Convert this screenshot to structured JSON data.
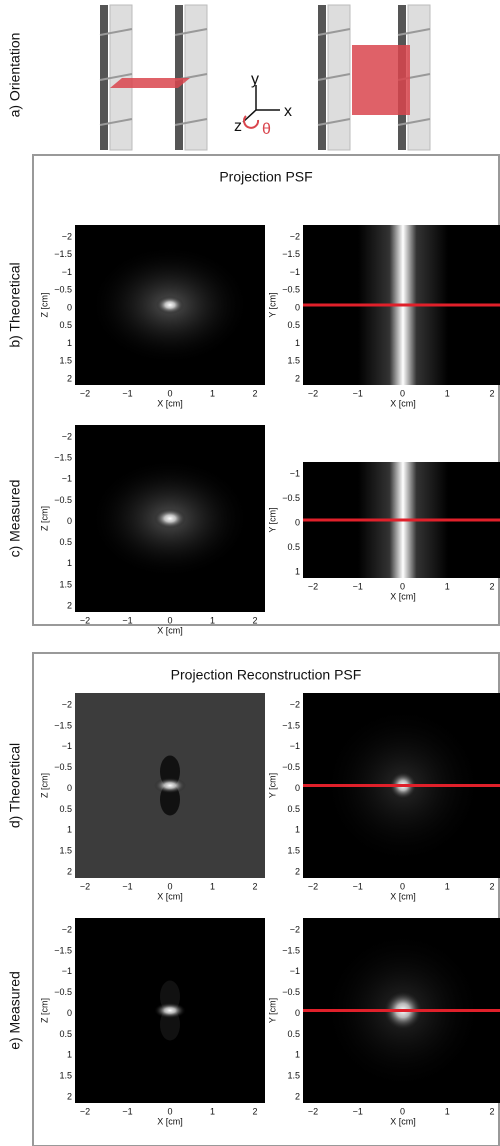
{
  "orientation": {
    "label": "a) Orientation",
    "axis_y": "y",
    "axis_x": "x",
    "axis_z": "z",
    "angle": "θ"
  },
  "sections": [
    {
      "title": "Projection PSF",
      "rows": [
        {
          "label": "b) Theoretical",
          "panels": [
            {
              "xticks": [
                "−2",
                "−1",
                "0",
                "1",
                "2"
              ],
              "yticks": [
                "−2",
                "−1.5",
                "−1",
                "−0.5",
                "0",
                "0.5",
                "1",
                "1.5",
                "2"
              ],
              "xlabel": "X [cm]",
              "ylabel": "Z [cm]"
            },
            {
              "xticks": [
                "−2",
                "−1",
                "0",
                "1",
                "2"
              ],
              "yticks": [
                "−2",
                "−1.5",
                "−1",
                "−0.5",
                "0",
                "0.5",
                "1",
                "1.5",
                "2"
              ],
              "xlabel": "X [cm]",
              "ylabel": "Y [cm]"
            }
          ]
        },
        {
          "label": "c) Measured",
          "panels": [
            {
              "xticks": [
                "−2",
                "−1",
                "0",
                "1",
                "2"
              ],
              "yticks": [
                "−2",
                "−1.5",
                "−1",
                "−0.5",
                "0",
                "0.5",
                "1",
                "1.5",
                "2"
              ],
              "xlabel": "X [cm]",
              "ylabel": "Z [cm]"
            },
            {
              "xticks": [
                "−2",
                "−1",
                "0",
                "1",
                "2"
              ],
              "yticks": [
                "−1",
                "−0.5",
                "0",
                "0.5",
                "1"
              ],
              "xlabel": "X [cm]",
              "ylabel": "Y [cm]"
            }
          ]
        }
      ]
    },
    {
      "title": "Projection Reconstruction PSF",
      "rows": [
        {
          "label": "d) Theoretical",
          "panels": [
            {
              "xticks": [
                "−2",
                "−1",
                "0",
                "1",
                "2"
              ],
              "yticks": [
                "−2",
                "−1.5",
                "−1",
                "−0.5",
                "0",
                "0.5",
                "1",
                "1.5",
                "2"
              ],
              "xlabel": "X [cm]",
              "ylabel": "Z [cm]"
            },
            {
              "xticks": [
                "−2",
                "−1",
                "0",
                "1",
                "2"
              ],
              "yticks": [
                "−2",
                "−1.5",
                "−1",
                "−0.5",
                "0",
                "0.5",
                "1",
                "1.5",
                "2"
              ],
              "xlabel": "X [cm]",
              "ylabel": "Y [cm]"
            }
          ]
        },
        {
          "label": "e) Measured",
          "panels": [
            {
              "xticks": [
                "−2",
                "−1",
                "0",
                "1",
                "2"
              ],
              "yticks": [
                "−2",
                "−1.5",
                "−1",
                "−0.5",
                "0",
                "0.5",
                "1",
                "1.5",
                "2"
              ],
              "xlabel": "X [cm]",
              "ylabel": "Z [cm]"
            },
            {
              "xticks": [
                "−2",
                "−1",
                "0",
                "1",
                "2"
              ],
              "yticks": [
                "−2",
                "−1.5",
                "−1",
                "−0.5",
                "0",
                "0.5",
                "1",
                "1.5",
                "2"
              ],
              "xlabel": "X [cm]",
              "ylabel": "Y [cm]"
            }
          ]
        }
      ]
    }
  ]
}
